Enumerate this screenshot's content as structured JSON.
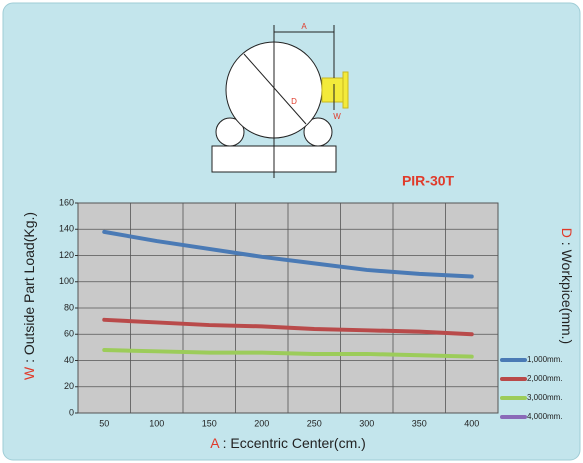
{
  "chart_data": {
    "type": "line",
    "annotation": "PIR-30T",
    "x_label_key": "A",
    "x_label": ": Eccentric Center(cm.)",
    "y_label_key": "W",
    "y_label": ": Outside Part Load(Kg.)",
    "y2_label_key": "D",
    "y2_label": ": Workpice(mm.)",
    "categories": [
      "50",
      "100",
      "150",
      "200",
      "250",
      "300",
      "350",
      "400"
    ],
    "ylim": [
      0,
      160
    ],
    "yticks": [
      0,
      20,
      40,
      60,
      80,
      100,
      120,
      140,
      160
    ],
    "grid": true,
    "legend": "right",
    "series": [
      {
        "name": "1,000mm.",
        "color": "#4a7ab5",
        "values": [
          138,
          131,
          125,
          119,
          114,
          109,
          106,
          104
        ]
      },
      {
        "name": "2,000mm.",
        "color": "#b94a4a",
        "values": [
          71,
          69,
          67,
          66,
          64,
          63,
          62,
          60
        ]
      },
      {
        "name": "3,000mm.",
        "color": "#9ccc5a",
        "values": [
          48,
          47,
          46,
          46,
          45,
          45,
          44,
          43
        ]
      },
      {
        "name": "4,000mm.",
        "color": "#8a6ab8",
        "values": [
          null,
          null,
          null,
          null,
          null,
          null,
          null,
          null
        ]
      }
    ],
    "diagram_labels": {
      "a": "A",
      "d": "D",
      "w": "W"
    }
  }
}
